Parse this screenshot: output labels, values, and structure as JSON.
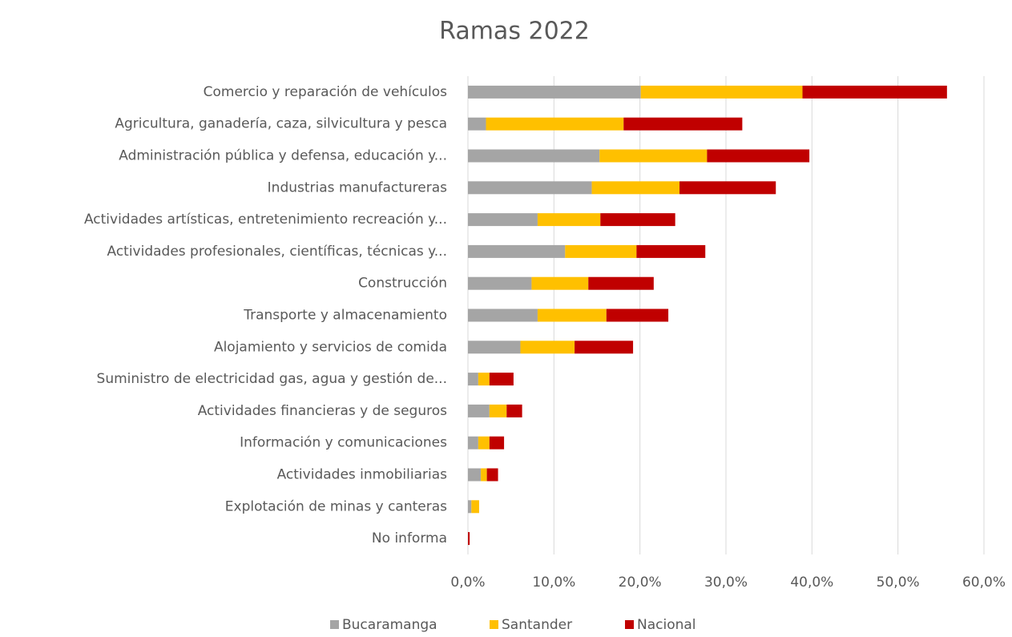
{
  "chart_data": {
    "type": "stacked_barh",
    "title": "Ramas 2022",
    "categories": [
      "Comercio y reparación de vehículos",
      "Agricultura, ganadería, caza, silvicultura y pesca",
      "Administración pública y defensa, educación y...",
      "Industrias manufactureras",
      "Actividades artísticas, entretenimiento recreación y...",
      "Actividades profesionales, científicas, técnicas y...",
      "Construcción",
      "Transporte y almacenamiento",
      "Alojamiento y servicios de comida",
      "Suministro de electricidad gas, agua y gestión de...",
      "Actividades financieras y de seguros",
      "Información y comunicaciones",
      "Actividades inmobiliarias",
      "Explotación de minas y canteras",
      "No informa"
    ],
    "series": [
      {
        "name": "Bucaramanga",
        "color": "#a5a5a5",
        "values": [
          20.1,
          2.1,
          15.3,
          14.4,
          8.1,
          11.3,
          7.4,
          8.1,
          6.1,
          1.2,
          2.5,
          1.2,
          1.5,
          0.4,
          0
        ]
      },
      {
        "name": "Santander",
        "color": "#ffc000",
        "values": [
          18.8,
          16.0,
          12.5,
          10.2,
          7.3,
          8.3,
          6.6,
          8.0,
          6.3,
          1.3,
          2.0,
          1.3,
          0.7,
          0.9,
          0
        ]
      },
      {
        "name": "Nacional",
        "color": "#c00000",
        "values": [
          16.8,
          13.8,
          11.9,
          11.2,
          8.7,
          8.0,
          7.6,
          7.2,
          6.8,
          2.8,
          1.8,
          1.7,
          1.3,
          0,
          0.2
        ]
      }
    ],
    "xlim": [
      0,
      60
    ],
    "xticks": [
      {
        "value": 0,
        "label": "0,0%"
      },
      {
        "value": 10,
        "label": "10,0%"
      },
      {
        "value": 20,
        "label": "20,0%"
      },
      {
        "value": 30,
        "label": "30,0%"
      },
      {
        "value": 40,
        "label": "40,0%"
      },
      {
        "value": 50,
        "label": "50,0%"
      },
      {
        "value": 60,
        "label": "60,0%"
      }
    ],
    "grid": true,
    "legend": "bottom"
  }
}
